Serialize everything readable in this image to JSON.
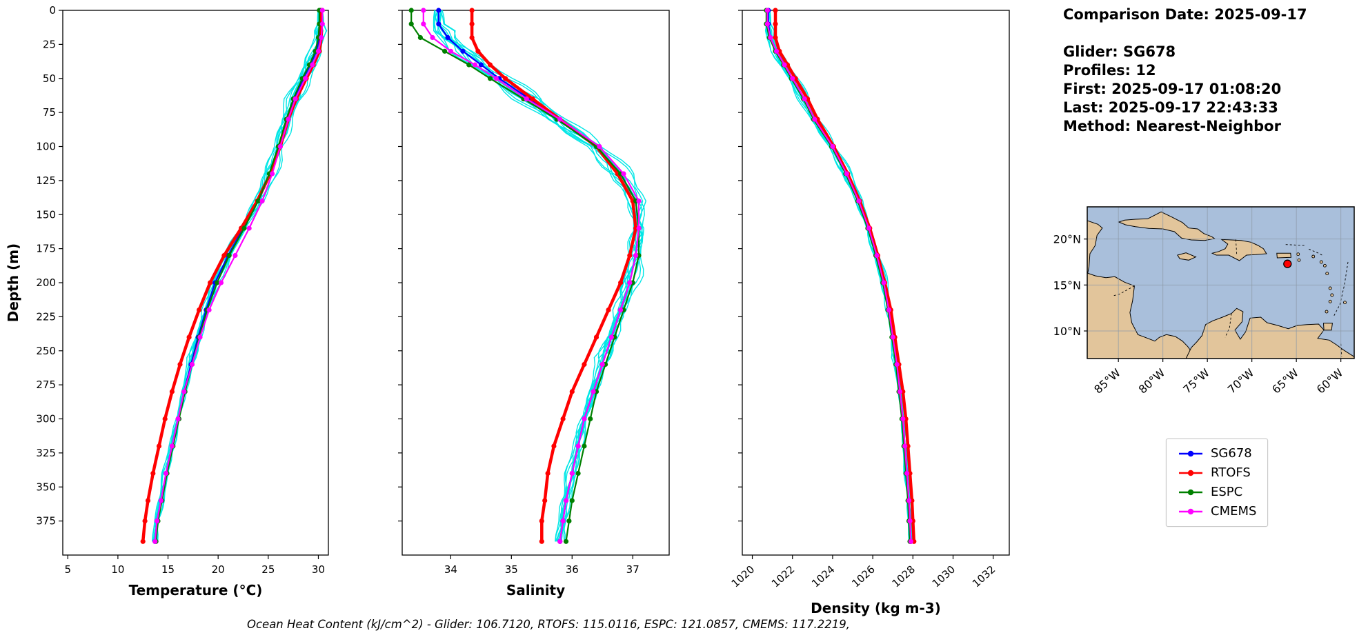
{
  "info_panel": {
    "comparison_date": "Comparison Date: 2025-09-17",
    "lines": [
      "Glider: SG678",
      "Profiles: 12",
      "First: 2025-09-17 01:08:20",
      "Last: 2025-09-17 22:43:33",
      "Method: Nearest-Neighbor"
    ]
  },
  "legend": {
    "items": [
      {
        "label": "SG678",
        "color": "#0000ff"
      },
      {
        "label": "RTOFS",
        "color": "#ff0000"
      },
      {
        "label": "ESPC",
        "color": "#008000"
      },
      {
        "label": "CMEMS",
        "color": "#ff00ff"
      }
    ]
  },
  "footer_note": "Ocean Heat Content (kJ/cm^2) - Glider: 106.7120,  RTOFS: 115.0116,  ESPC: 121.0857,  CMEMS: 117.2219,",
  "chart_data": {
    "type": "line",
    "description": "Glider vs model vertical ocean profiles (depth increases downward)",
    "ylabel": "Depth (m)",
    "ylim": [
      0,
      400
    ],
    "yticks": [
      0,
      25,
      50,
      75,
      100,
      125,
      150,
      175,
      200,
      225,
      250,
      275,
      300,
      325,
      350,
      375
    ],
    "depths": [
      0,
      10,
      20,
      30,
      40,
      50,
      65,
      80,
      100,
      120,
      140,
      160,
      180,
      200,
      220,
      240,
      260,
      280,
      300,
      320,
      340,
      360,
      375,
      390
    ],
    "panels": [
      {
        "key": "temperature",
        "xlabel": "Temperature (°C)",
        "xlim": [
          4.5,
          31.0
        ],
        "xticks": [
          5,
          10,
          15,
          20,
          25,
          30
        ],
        "rotate_xtick_labels": false
      },
      {
        "key": "salinity",
        "xlabel": "Salinity",
        "xlim": [
          33.2,
          37.6
        ],
        "xticks": [
          34,
          35,
          36,
          37
        ],
        "rotate_xtick_labels": false
      },
      {
        "key": "density",
        "xlabel": "Density (kg m-3)",
        "xlim": [
          1019.5,
          1032.8
        ],
        "xticks": [
          1020,
          1022,
          1024,
          1026,
          1028,
          1030,
          1032
        ],
        "rotate_xtick_labels": true
      }
    ],
    "series": [
      {
        "name": "SG678",
        "color": "#0000ff",
        "temperature": [
          30.2,
          30.2,
          30.1,
          29.8,
          29.2,
          28.5,
          27.6,
          26.9,
          26.1,
          25.2,
          24.0,
          22.5,
          21.0,
          19.7,
          18.8,
          18.0,
          17.3,
          16.6,
          16.0,
          15.4,
          14.8,
          14.3,
          13.9,
          13.7
        ],
        "salinity": [
          33.8,
          33.8,
          33.95,
          34.2,
          34.5,
          34.8,
          35.3,
          35.75,
          36.4,
          36.8,
          37.05,
          37.1,
          37.05,
          36.95,
          36.8,
          36.65,
          36.5,
          36.35,
          36.2,
          36.1,
          36.0,
          35.9,
          35.85,
          35.8
        ],
        "density": [
          1020.8,
          1020.8,
          1020.9,
          1021.2,
          1021.6,
          1022.0,
          1022.6,
          1023.1,
          1024.0,
          1024.7,
          1025.3,
          1025.8,
          1026.2,
          1026.55,
          1026.8,
          1027.0,
          1027.2,
          1027.35,
          1027.5,
          1027.6,
          1027.7,
          1027.8,
          1027.85,
          1027.9
        ]
      },
      {
        "name": "RTOFS",
        "color": "#ff0000",
        "temperature": [
          30.3,
          30.3,
          30.3,
          30.1,
          29.5,
          28.8,
          27.8,
          27.0,
          26.2,
          25.2,
          23.9,
          22.3,
          20.6,
          19.2,
          18.1,
          17.1,
          16.2,
          15.4,
          14.7,
          14.1,
          13.5,
          13.0,
          12.7,
          12.5
        ],
        "salinity": [
          34.35,
          34.35,
          34.35,
          34.45,
          34.65,
          34.9,
          35.35,
          35.8,
          36.4,
          36.75,
          37.0,
          37.05,
          36.95,
          36.8,
          36.6,
          36.4,
          36.2,
          36.0,
          35.85,
          35.7,
          35.6,
          35.55,
          35.5,
          35.5
        ],
        "density": [
          1021.15,
          1021.15,
          1021.15,
          1021.35,
          1021.75,
          1022.15,
          1022.75,
          1023.25,
          1024.05,
          1024.75,
          1025.35,
          1025.85,
          1026.25,
          1026.6,
          1026.9,
          1027.1,
          1027.3,
          1027.5,
          1027.65,
          1027.75,
          1027.85,
          1027.95,
          1028.0,
          1028.05
        ]
      },
      {
        "name": "ESPC",
        "color": "#008000",
        "temperature": [
          30.1,
          30.1,
          30.0,
          29.7,
          29.1,
          28.4,
          27.5,
          26.8,
          26.0,
          25.1,
          24.0,
          22.6,
          21.1,
          19.9,
          18.9,
          18.1,
          17.4,
          16.7,
          16.1,
          15.5,
          14.9,
          14.4,
          14.0,
          13.8
        ],
        "salinity": [
          33.35,
          33.35,
          33.5,
          33.9,
          34.3,
          34.65,
          35.2,
          35.75,
          36.4,
          36.8,
          37.05,
          37.1,
          37.1,
          37.0,
          36.85,
          36.7,
          36.55,
          36.4,
          36.3,
          36.2,
          36.1,
          36.0,
          35.95,
          35.9
        ],
        "density": [
          1020.7,
          1020.7,
          1020.85,
          1021.15,
          1021.55,
          1021.95,
          1022.55,
          1023.05,
          1023.95,
          1024.65,
          1025.25,
          1025.75,
          1026.15,
          1026.5,
          1026.75,
          1026.95,
          1027.15,
          1027.3,
          1027.45,
          1027.55,
          1027.65,
          1027.75,
          1027.8,
          1027.85
        ]
      },
      {
        "name": "CMEMS",
        "color": "#ff00ff",
        "temperature": [
          30.4,
          30.4,
          30.3,
          30.0,
          29.4,
          28.7,
          27.7,
          27.0,
          26.2,
          25.4,
          24.4,
          23.1,
          21.7,
          20.3,
          19.1,
          18.2,
          17.4,
          16.6,
          16.0,
          15.4,
          14.8,
          14.3,
          13.9,
          13.7
        ],
        "salinity": [
          33.55,
          33.55,
          33.7,
          34.0,
          34.4,
          34.75,
          35.25,
          35.8,
          36.45,
          36.85,
          37.1,
          37.1,
          37.05,
          36.95,
          36.8,
          36.65,
          36.5,
          36.35,
          36.2,
          36.1,
          36.0,
          35.9,
          35.85,
          35.8
        ],
        "density": [
          1020.75,
          1020.75,
          1020.9,
          1021.2,
          1021.6,
          1022.0,
          1022.6,
          1023.1,
          1024.0,
          1024.7,
          1025.3,
          1025.8,
          1026.2,
          1026.55,
          1026.8,
          1027.0,
          1027.2,
          1027.35,
          1027.5,
          1027.6,
          1027.7,
          1027.8,
          1027.85,
          1027.9
        ]
      }
    ],
    "glider_raw": {
      "name": "Glider raw profiles",
      "color": "#00e6e6",
      "profiles": 12,
      "spread": {
        "temperature": 0.55,
        "salinity": 0.16,
        "density": 0.2
      }
    }
  },
  "map": {
    "region": "Caribbean Sea",
    "ocean_color": "#a9bfdb",
    "land_color": "#e2c59b",
    "extent": {
      "lon_min": -88.5,
      "lon_max": -58.5,
      "lat_min": 7.0,
      "lat_max": 23.5
    },
    "lat_ticks": [
      {
        "label": "20°N",
        "value": 20
      },
      {
        "label": "15°N",
        "value": 15
      },
      {
        "label": "10°N",
        "value": 10
      }
    ],
    "lon_ticks": [
      {
        "label": "85°W",
        "value": -85
      },
      {
        "label": "80°W",
        "value": -80
      },
      {
        "label": "75°W",
        "value": -75
      },
      {
        "label": "70°W",
        "value": -70
      },
      {
        "label": "65°W",
        "value": -65
      },
      {
        "label": "60°W",
        "value": -60
      }
    ],
    "glider_marker": {
      "lon": -66.0,
      "lat": 17.3,
      "color": "#ff0000"
    }
  }
}
